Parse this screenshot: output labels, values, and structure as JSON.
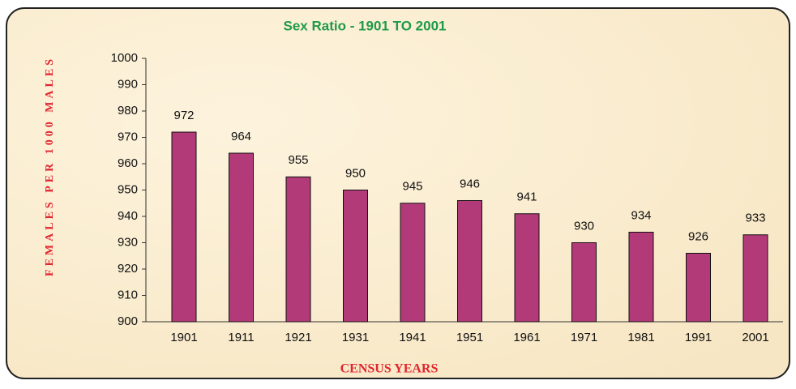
{
  "chart_data": {
    "type": "bar",
    "title": "Sex Ratio - 1901 TO 2001",
    "x_label": "CENSUS YEARS",
    "y_label": "FEMALES PER 1000 MALES",
    "categories": [
      "1901",
      "1911",
      "1921",
      "1931",
      "1941",
      "1951",
      "1961",
      "1971",
      "1981",
      "1991",
      "2001"
    ],
    "values": [
      972,
      964,
      955,
      950,
      945,
      946,
      941,
      930,
      934,
      926,
      933
    ],
    "color": "#b33a78",
    "ylim": [
      900,
      1000
    ],
    "yticks": [
      900,
      910,
      920,
      930,
      940,
      950,
      960,
      970,
      980,
      990,
      1000
    ]
  }
}
